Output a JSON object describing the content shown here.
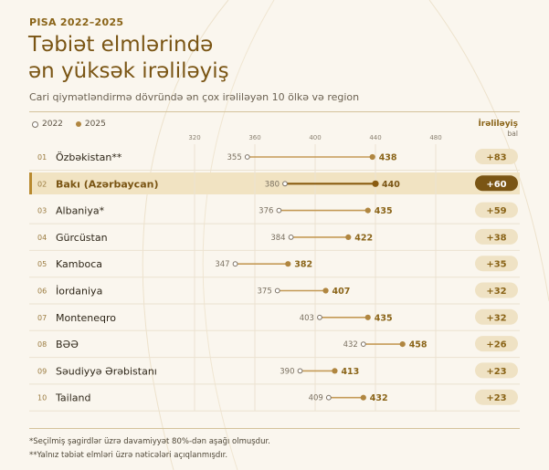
{
  "header": {
    "eyebrow": "PISA 2022–2025",
    "title_line1": "Təbiət elmlərində",
    "title_line2": "ən yüksək irəliləyiş",
    "subtitle": "Cari qiymətləndirmə dövründə ən çox irəliləyən 10 ölkə və region"
  },
  "legend": {
    "series_old": "2022",
    "series_new": "2025"
  },
  "improvement_header": {
    "label": "İrəliləyiş",
    "unit": "bal"
  },
  "colors": {
    "accent": "#8a6418",
    "dot_new": "#b08640",
    "dot_new_highlight": "#8a5c10",
    "pill": "#efe2c4",
    "pill_highlight": "#7a5514",
    "line": "#c49a56"
  },
  "footnotes": [
    "*Seçilmiş şagirdlər üzrə davamiyyət 80%-dən aşağı olmuşdur.",
    "**Yalnız təbiət elmləri üzrə nəticələri açıqlanmışdır."
  ],
  "chart_data": {
    "type": "dumbbell",
    "x_ticks": [
      320,
      360,
      400,
      440,
      480
    ],
    "xlim": [
      320,
      480
    ],
    "series": [
      {
        "name": "2022"
      },
      {
        "name": "2025"
      }
    ],
    "highlight_rank": "02",
    "rows": [
      {
        "rank": "01",
        "name": "Özbəkistan**",
        "v2022": 355,
        "v2025": 438,
        "change": "+83"
      },
      {
        "rank": "02",
        "name": "Bakı (Azərbaycan)",
        "v2022": 380,
        "v2025": 440,
        "change": "+60"
      },
      {
        "rank": "03",
        "name": "Albaniya*",
        "v2022": 376,
        "v2025": 435,
        "change": "+59"
      },
      {
        "rank": "04",
        "name": "Gürcüstan",
        "v2022": 384,
        "v2025": 422,
        "change": "+38"
      },
      {
        "rank": "05",
        "name": "Kamboca",
        "v2022": 347,
        "v2025": 382,
        "change": "+35"
      },
      {
        "rank": "06",
        "name": "İordaniya",
        "v2022": 375,
        "v2025": 407,
        "change": "+32"
      },
      {
        "rank": "07",
        "name": "Monteneqro",
        "v2022": 403,
        "v2025": 435,
        "change": "+32"
      },
      {
        "rank": "08",
        "name": "BƏƏ",
        "v2022": 432,
        "v2025": 458,
        "change": "+26"
      },
      {
        "rank": "09",
        "name": "Səudiyyə Ərəbistanı",
        "v2022": 390,
        "v2025": 413,
        "change": "+23"
      },
      {
        "rank": "10",
        "name": "Tailand",
        "v2022": 409,
        "v2025": 432,
        "change": "+23"
      }
    ]
  }
}
